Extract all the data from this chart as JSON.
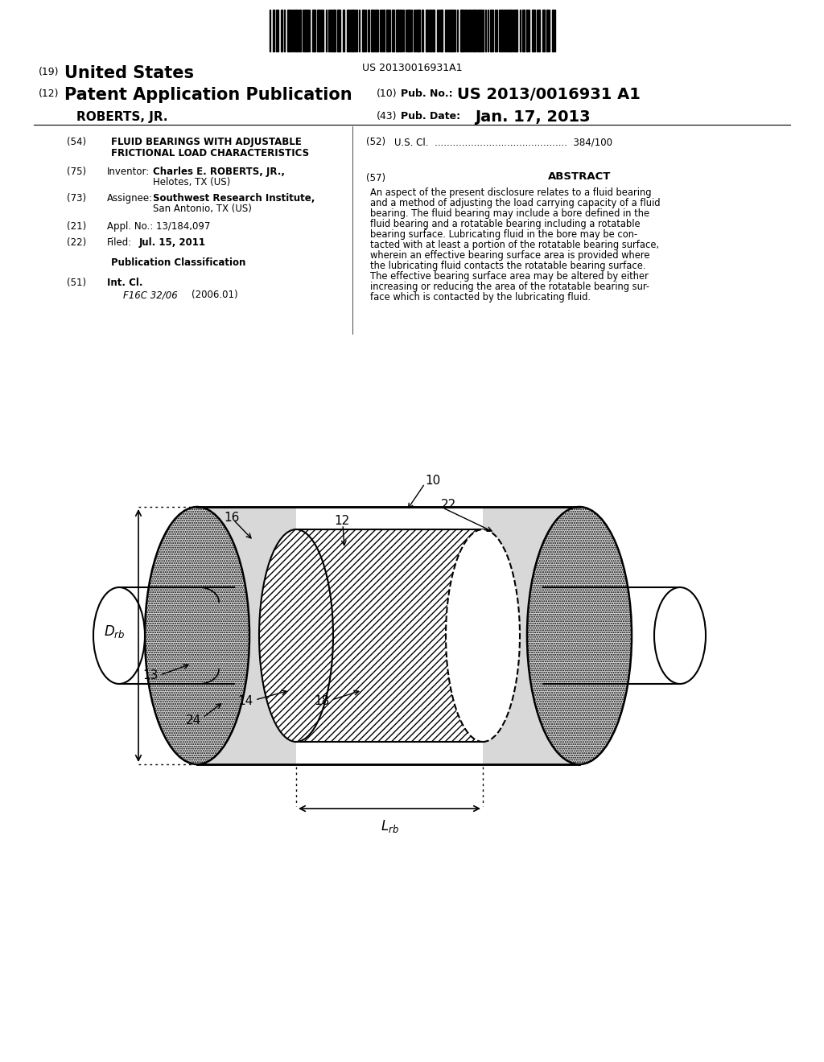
{
  "bg_color": "#ffffff",
  "barcode_text": "US 20130016931A1",
  "pub_no": "US 2013/0016931 A1",
  "pub_date": "Jan. 17, 2013",
  "abstract_lines": [
    "An aspect of the present disclosure relates to a fluid bearing",
    "and a method of adjusting the load carrying capacity of a fluid",
    "bearing. The fluid bearing may include a bore defined in the",
    "fluid bearing and a rotatable bearing including a rotatable",
    "bearing surface. Lubricating fluid in the bore may be con-",
    "tacted with at least a portion of the rotatable bearing surface,",
    "wherein an effective bearing surface area is provided where",
    "the lubricating fluid contacts the rotatable bearing surface.",
    "The effective bearing surface area may be altered by either",
    "increasing or reducing the area of the rotatable bearing sur-",
    "face which is contacted by the lubricating fluid."
  ],
  "figwidth": 10.24,
  "figheight": 13.2,
  "dpi": 100
}
